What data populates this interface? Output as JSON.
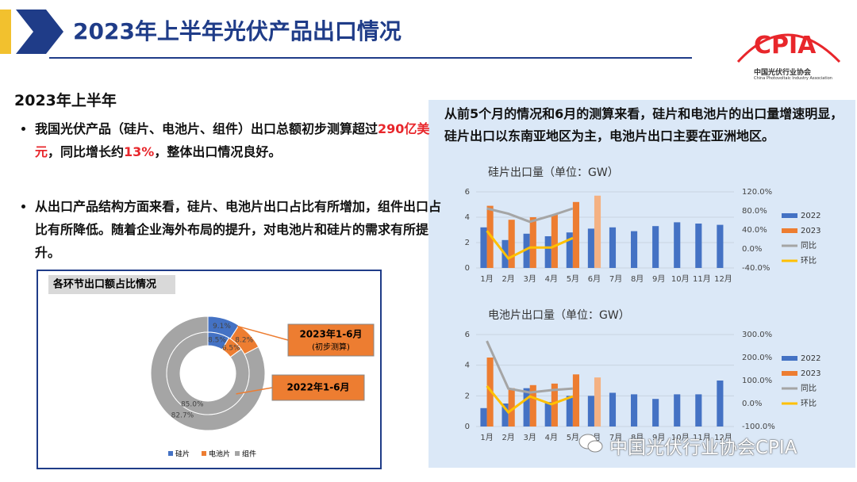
{
  "header": {
    "title": "2023年上半年光伏产品出口情况",
    "logo": "CPIA",
    "org": "中国光伏行业协会",
    "org_en": "China Photovoltaic Industry Association"
  },
  "left": {
    "heading": "2023年上半年",
    "bullets": [
      {
        "parts": [
          {
            "text": "我国光伏产品（硅片、电池片、组件）出口总额初步测算超过"
          },
          {
            "text": "290亿美元",
            "emphasis": true
          },
          {
            "text": "，同比增长约"
          },
          {
            "text": "13%",
            "emphasis": true
          },
          {
            "text": "，整体出口情况良好。"
          }
        ]
      },
      {
        "parts": [
          {
            "text": "从出口产品结构方面来看，硅片、电池片出口占比有所增加，组件出口占比有所降低。随着企业海外布局的提升，对电池片和硅片的需求有所提升。"
          }
        ]
      }
    ]
  },
  "right": {
    "summary": "从前5个月的情况和6月的测算来看，硅片和电池片的出口量增速明显，硅片出口以东南亚地区为主，电池片出口主要在亚洲地区。"
  },
  "watermark": "中国光伏行业协会CPIA",
  "chart_data": [
    {
      "type": "donut",
      "title": "各环节出口额占比情况",
      "categories": [
        "硅片",
        "电池片",
        "组件"
      ],
      "colors": [
        "#4472c4",
        "#ed7d31",
        "#a5a5a5"
      ],
      "series": [
        {
          "name": "2023年1-6月",
          "subtitle": "(初步测算)",
          "values": [
            9.1,
            8.2,
            82.7
          ],
          "value_labels": [
            "9.1%",
            "8.2%",
            "82.7%"
          ]
        },
        {
          "name": "2022年1-6月",
          "values": [
            8.5,
            6.5,
            85.0
          ],
          "value_labels": [
            "8.5%",
            "6.5%",
            "85.0%"
          ]
        }
      ]
    },
    {
      "type": "combo",
      "title": "硅片出口量（单位：GW）",
      "categories": [
        "1月",
        "2月",
        "3月",
        "4月",
        "5月",
        "6月",
        "7月",
        "8月",
        "9月",
        "10月",
        "11月",
        "12月"
      ],
      "ylim": [
        0,
        6
      ],
      "yticks": [
        0,
        2,
        4,
        6
      ],
      "y2lim": [
        -40,
        120
      ],
      "y2ticks": [
        {
          "value": -40,
          "label": "-40.0%"
        },
        {
          "value": 0,
          "label": "0.0%"
        },
        {
          "value": 40,
          "label": "40.0%"
        },
        {
          "value": 80,
          "label": "80.0%"
        },
        {
          "value": 120,
          "label": "120.0%"
        }
      ],
      "grid": true,
      "series": [
        {
          "name": "2022",
          "kind": "bar",
          "color": "#4472c4",
          "values": [
            3.2,
            2.2,
            2.7,
            2.5,
            2.8,
            3.1,
            3.2,
            2.9,
            3.3,
            3.6,
            3.5,
            3.4
          ]
        },
        {
          "name": "2023",
          "kind": "bar",
          "color": "#ed7d31",
          "colors": [
            "#ed7d31",
            "#ed7d31",
            "#ed7d31",
            "#ed7d31",
            "#ed7d31",
            "#f4b183",
            null,
            null,
            null,
            null,
            null,
            null
          ],
          "values": [
            4.9,
            3.8,
            4.0,
            4.2,
            5.2,
            5.7,
            null,
            null,
            null,
            null,
            null,
            null
          ]
        },
        {
          "name": "同比",
          "kind": "line",
          "axis": "y2",
          "color": "#a5a5a5",
          "values": [
            85,
            74,
            57,
            70,
            85,
            null,
            null,
            null,
            null,
            null,
            null,
            null
          ]
        },
        {
          "name": "环比",
          "kind": "line",
          "axis": "y2",
          "color": "#ffc000",
          "values": [
            38,
            -20,
            3,
            3,
            23,
            null,
            null,
            null,
            null,
            null,
            null,
            null
          ]
        }
      ]
    },
    {
      "type": "combo",
      "title": "电池片出口量（单位：GW）",
      "categories": [
        "1月",
        "2月",
        "3月",
        "4月",
        "5月",
        "6月",
        "7月",
        "8月",
        "9月",
        "10月",
        "11月",
        "12月"
      ],
      "ylim": [
        0,
        6
      ],
      "yticks": [
        0,
        2,
        4,
        6
      ],
      "y2lim": [
        -100,
        300
      ],
      "y2ticks": [
        {
          "value": -100,
          "label": "-100.0%"
        },
        {
          "value": 0,
          "label": "0.0%"
        },
        {
          "value": 100,
          "label": "100.0%"
        },
        {
          "value": 200,
          "label": "200.0%"
        },
        {
          "value": 300,
          "label": "300.0%"
        }
      ],
      "grid": true,
      "series": [
        {
          "name": "2022",
          "kind": "bar",
          "color": "#4472c4",
          "values": [
            1.2,
            1.5,
            2.5,
            1.6,
            2.0,
            2.0,
            2.2,
            2.1,
            1.8,
            2.1,
            2.1,
            3.0
          ]
        },
        {
          "name": "2023",
          "kind": "bar",
          "color": "#ed7d31",
          "colors": [
            "#ed7d31",
            "#ed7d31",
            "#ed7d31",
            "#ed7d31",
            "#ed7d31",
            "#f4b183",
            null,
            null,
            null,
            null,
            null,
            null
          ],
          "values": [
            4.5,
            2.5,
            2.7,
            2.8,
            3.4,
            3.2,
            null,
            null,
            null,
            null,
            null,
            null
          ]
        },
        {
          "name": "同比",
          "kind": "line",
          "axis": "y2",
          "color": "#a5a5a5",
          "values": [
            272,
            65,
            48,
            58,
            65,
            null,
            null,
            null,
            null,
            null,
            null,
            null
          ]
        },
        {
          "name": "环比",
          "kind": "line",
          "axis": "y2",
          "color": "#ffc000",
          "values": [
            76,
            -38,
            31,
            -3,
            31,
            null,
            null,
            null,
            null,
            null,
            null,
            null
          ]
        }
      ]
    }
  ]
}
